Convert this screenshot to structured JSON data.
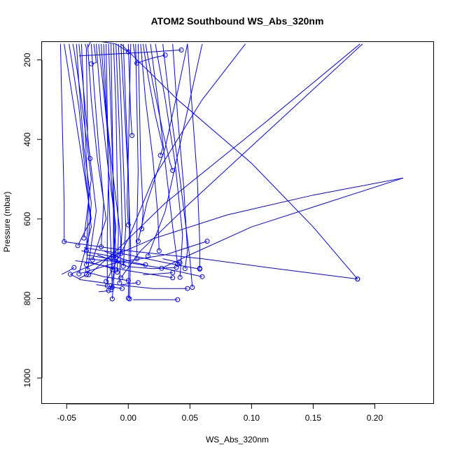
{
  "chart_data": {
    "type": "line",
    "title": "ATOM2 Southbound WS_Abs_320nm",
    "xlabel": "WS_Abs_320nm",
    "ylabel": "Pressure (mbar)",
    "xlim": [
      -0.07,
      0.248
    ],
    "ylim": [
      1065,
      155
    ],
    "y_reversed": true,
    "grid": false,
    "legend": "none",
    "color": "#0000ff",
    "x_ticks": [
      -0.05,
      0.0,
      0.05,
      0.1,
      0.15,
      0.2
    ],
    "x_tick_labels": [
      "-0.05",
      "0.00",
      "0.05",
      "0.10",
      "0.15",
      "0.20"
    ],
    "y_ticks": [
      200,
      400,
      600,
      800,
      1000
    ],
    "y_tick_labels": [
      "200",
      "400",
      "600",
      "800",
      "1000"
    ],
    "series": [
      {
        "x": [
          -0.048,
          -0.046,
          -0.04,
          -0.035,
          -0.03,
          -0.04
        ],
        "y": [
          160,
          200,
          320,
          480,
          620,
          738
        ]
      },
      {
        "x": [
          -0.045,
          -0.044,
          -0.038,
          -0.03,
          -0.036
        ],
        "y": [
          160,
          175,
          300,
          500,
          648
        ]
      },
      {
        "x": [
          -0.042,
          -0.04,
          -0.036,
          -0.03,
          -0.034
        ],
        "y": [
          160,
          260,
          420,
          560,
          715
        ]
      },
      {
        "x": [
          -0.04,
          -0.037,
          -0.032,
          -0.026,
          -0.033
        ],
        "y": [
          160,
          250,
          420,
          580,
          728
        ]
      },
      {
        "x": [
          -0.038,
          -0.036,
          -0.034,
          -0.032,
          -0.034
        ],
        "y": [
          160,
          300,
          450,
          550,
          680
        ]
      },
      {
        "x": [
          -0.035,
          -0.034,
          -0.033,
          -0.031
        ],
        "y": [
          160,
          170,
          400,
          448
        ]
      },
      {
        "x": [
          -0.033,
          -0.03,
          -0.025,
          -0.018,
          -0.029
        ],
        "y": [
          160,
          300,
          450,
          600,
          703
        ]
      },
      {
        "x": [
          -0.03,
          -0.028,
          -0.024,
          -0.02,
          -0.022
        ],
        "y": [
          160,
          260,
          420,
          560,
          670
        ]
      },
      {
        "x": [
          -0.028,
          -0.027,
          -0.026,
          -0.03
        ],
        "y": [
          160,
          180,
          207,
          210
        ]
      },
      {
        "x": [
          -0.026,
          -0.022,
          -0.016,
          -0.01,
          -0.013
        ],
        "y": [
          160,
          320,
          480,
          620,
          727
        ]
      },
      {
        "x": [
          -0.024,
          -0.02,
          -0.015,
          -0.012,
          -0.012
        ],
        "y": [
          160,
          280,
          440,
          580,
          694
        ]
      },
      {
        "x": [
          -0.022,
          -0.018,
          -0.012,
          -0.006,
          -0.007
        ],
        "y": [
          160,
          330,
          500,
          650,
          761
        ]
      },
      {
        "x": [
          -0.02,
          -0.018,
          -0.016,
          -0.017,
          -0.017
        ],
        "y": [
          160,
          300,
          480,
          640,
          768
        ]
      },
      {
        "x": [
          -0.018,
          -0.017,
          -0.016,
          -0.014,
          -0.013
        ],
        "y": [
          160,
          330,
          520,
          680,
          772
        ]
      },
      {
        "x": [
          -0.016,
          -0.014,
          -0.012,
          -0.01,
          -0.014
        ],
        "y": [
          160,
          340,
          520,
          700,
          778
        ]
      },
      {
        "x": [
          -0.014,
          -0.013,
          -0.012,
          -0.011,
          -0.013
        ],
        "y": [
          160,
          360,
          560,
          720,
          801
        ]
      },
      {
        "x": [
          -0.012,
          -0.01,
          -0.009,
          -0.008,
          -0.009
        ],
        "y": [
          160,
          320,
          500,
          640,
          734
        ]
      },
      {
        "x": [
          -0.01,
          -0.008,
          -0.006,
          -0.005,
          -0.006
        ],
        "y": [
          160,
          320,
          480,
          620,
          687
        ]
      },
      {
        "x": [
          -0.008,
          -0.006,
          -0.004,
          -0.002,
          -0.004
        ],
        "y": [
          160,
          300,
          460,
          620,
          719
        ]
      },
      {
        "x": [
          -0.006,
          -0.003,
          0.0,
          0.002,
          0.001
        ],
        "y": [
          160,
          330,
          500,
          680,
          801
        ]
      },
      {
        "x": [
          -0.004,
          -0.002,
          0.0,
          0.001,
          0.0
        ],
        "y": [
          160,
          320,
          480,
          650,
          799
        ]
      },
      {
        "x": [
          0.0,
          0.001,
          0.002,
          0.003
        ],
        "y": [
          160,
          250,
          340,
          390
        ]
      },
      {
        "x": [
          0.002,
          0.001,
          0.0,
          -0.001,
          0.0
        ],
        "y": [
          160,
          300,
          440,
          560,
          615
        ]
      },
      {
        "x": [
          0.004,
          0.005,
          0.006,
          0.007
        ],
        "y": [
          160,
          180,
          200,
          208
        ]
      },
      {
        "x": [
          0.006,
          0.007,
          0.008,
          0.007,
          0.007
        ],
        "y": [
          160,
          320,
          480,
          620,
          700
        ]
      },
      {
        "x": [
          0.008,
          0.009,
          0.01,
          0.012,
          0.011
        ],
        "y": [
          160,
          300,
          450,
          580,
          625
        ]
      },
      {
        "x": [
          0.01,
          0.014,
          0.02,
          0.024,
          0.025
        ],
        "y": [
          160,
          300,
          450,
          590,
          680
        ]
      },
      {
        "x": [
          0.012,
          0.016,
          0.022,
          0.028,
          0.026
        ],
        "y": [
          160,
          240,
          340,
          420,
          440
        ]
      },
      {
        "x": [
          0.014,
          0.02,
          0.028,
          0.034,
          0.036
        ],
        "y": [
          160,
          260,
          380,
          460,
          478
        ]
      },
      {
        "x": [
          0.018,
          0.024,
          0.03,
          0.036,
          0.04
        ],
        "y": [
          160,
          300,
          460,
          620,
          714
        ]
      },
      {
        "x": [
          0.022,
          0.03,
          0.038,
          0.044,
          0.042
        ],
        "y": [
          160,
          300,
          460,
          640,
          747
        ]
      },
      {
        "x": [
          0.028,
          0.034,
          0.042,
          0.05,
          0.052
        ],
        "y": [
          160,
          320,
          500,
          700,
          772
        ]
      },
      {
        "x": [
          0.036,
          0.04,
          0.045,
          0.048,
          0.046
        ],
        "y": [
          160,
          340,
          520,
          680,
          725
        ]
      },
      {
        "x": [
          0.048,
          0.052,
          0.056,
          0.058,
          0.058
        ],
        "y": [
          160,
          330,
          500,
          660,
          724
        ]
      },
      {
        "x": [
          0.048,
          0.04,
          0.03,
          0.015,
          0.008
        ],
        "y": [
          160,
          280,
          420,
          560,
          656
        ]
      },
      {
        "x": [
          0.06,
          0.05,
          0.04,
          0.03,
          0.016
        ],
        "y": [
          160,
          300,
          440,
          580,
          693
        ]
      },
      {
        "x": [
          -0.04,
          0.018,
          0.043
        ],
        "y": [
          190,
          180,
          175
        ]
      },
      {
        "x": [
          -0.033,
          -0.03,
          -0.01,
          0.0
        ],
        "y": [
          170,
          150,
          160,
          180
        ]
      },
      {
        "x": [
          0.005,
          0.02,
          0.03
        ],
        "y": [
          210,
          195,
          188
        ]
      },
      {
        "x": [
          0.095,
          0.06,
          0.02,
          0.0,
          -0.018
        ],
        "y": [
          160,
          300,
          500,
          650,
          757
        ]
      },
      {
        "x": [
          0.19,
          0.12,
          0.05,
          0.01,
          -0.006
        ],
        "y": [
          160,
          360,
          560,
          680,
          748
        ]
      },
      {
        "x": [
          0.188,
          0.11,
          0.03,
          -0.01,
          -0.032
        ],
        "y": [
          160,
          360,
          560,
          680,
          740
        ]
      },
      {
        "x": [
          -0.006,
          0.04,
          0.1,
          0.15,
          0.186
        ],
        "y": [
          160,
          300,
          460,
          620,
          751
        ]
      },
      {
        "x": [
          0.223,
          0.15,
          0.08,
          0.02,
          -0.047
        ],
        "y": [
          497,
          540,
          590,
          650,
          739
        ]
      },
      {
        "x": [
          0.223,
          0.16,
          0.1,
          0.05,
          0.027
        ],
        "y": [
          497,
          560,
          620,
          690,
          724
        ]
      },
      {
        "x": [
          -0.052,
          0.0,
          0.06,
          0.12,
          0.186
        ],
        "y": [
          657,
          680,
          700,
          725,
          751
        ]
      },
      {
        "x": [
          -0.052,
          -0.04,
          -0.03,
          -0.041
        ],
        "y": [
          160,
          400,
          600,
          667
        ]
      },
      {
        "x": [
          -0.055,
          -0.054,
          -0.052,
          -0.052
        ],
        "y": [
          160,
          300,
          560,
          657
        ]
      },
      {
        "x": [
          -0.039,
          -0.01,
          0.03,
          0.064
        ],
        "y": [
          737,
          710,
          690,
          656
        ]
      },
      {
        "x": [
          -0.036,
          0.0,
          0.03,
          0.058
        ],
        "y": [
          672,
          690,
          710,
          726
        ]
      },
      {
        "x": [
          -0.034,
          0.0,
          0.03,
          0.06
        ],
        "y": [
          700,
          710,
          725,
          745
        ]
      },
      {
        "x": [
          -0.04,
          -0.01,
          0.02,
          0.048
        ],
        "y": [
          752,
          765,
          775,
          775
        ]
      },
      {
        "x": [
          -0.032,
          0.0,
          0.02,
          0.036
        ],
        "y": [
          710,
          730,
          740,
          748
        ]
      },
      {
        "x": [
          -0.025,
          0.0,
          0.02,
          0.039
        ],
        "y": [
          690,
          720,
          725,
          722
        ]
      },
      {
        "x": [
          -0.02,
          -0.005,
          0.005,
          0.014
        ],
        "y": [
          680,
          700,
          710,
          715
        ]
      },
      {
        "x": [
          -0.043,
          -0.03,
          -0.02,
          -0.01
        ],
        "y": [
          705,
          710,
          718,
          728
        ]
      },
      {
        "x": [
          -0.047,
          -0.04,
          -0.034
        ],
        "y": [
          739,
          750,
          740
        ]
      },
      {
        "x": [
          -0.054,
          -0.048,
          -0.044
        ],
        "y": [
          739,
          730,
          722
        ]
      },
      {
        "x": [
          -0.032,
          -0.02,
          -0.01,
          0.0
        ],
        "y": [
          735,
          745,
          750,
          755
        ]
      },
      {
        "x": [
          -0.026,
          -0.015,
          -0.005
        ],
        "y": [
          765,
          770,
          775
        ]
      },
      {
        "x": [
          -0.024,
          -0.02,
          -0.016
        ],
        "y": [
          783,
          782,
          780
        ]
      },
      {
        "x": [
          0.004,
          0.02,
          0.04
        ],
        "y": [
          803,
          803,
          803
        ]
      },
      {
        "x": [
          -0.006,
          0.0,
          0.008
        ],
        "y": [
          766,
          763,
          760
        ]
      },
      {
        "x": [
          0.028,
          0.035,
          0.042
        ],
        "y": [
          700,
          705,
          710
        ]
      },
      {
        "x": [
          0.012,
          0.024,
          0.036
        ],
        "y": [
          740,
          738,
          735
        ]
      },
      {
        "x": [
          -0.038,
          -0.03,
          -0.02,
          -0.01
        ],
        "y": [
          680,
          685,
          690,
          697
        ]
      },
      {
        "x": [
          -0.034,
          -0.025,
          -0.015,
          -0.005
        ],
        "y": [
          690,
          695,
          700,
          708
        ]
      }
    ]
  }
}
